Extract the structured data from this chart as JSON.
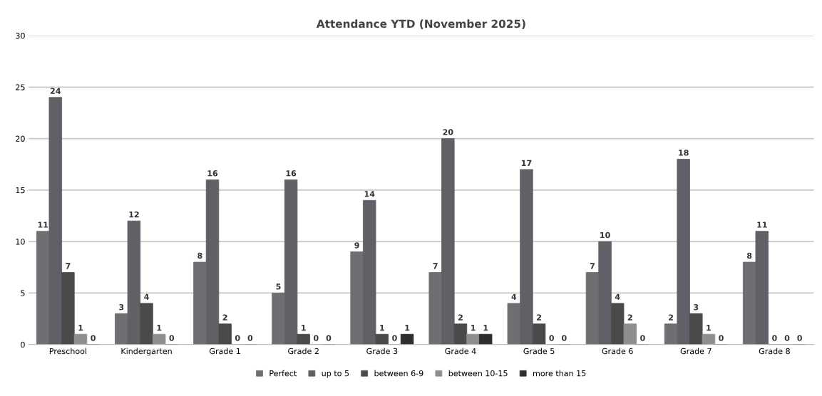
{
  "chart_data": {
    "type": "bar",
    "title": "Attendance YTD (November 2025)",
    "categories": [
      "Preschool",
      "Kindergarten",
      "Grade 1",
      "Grade 2",
      "Grade 3",
      "Grade 4",
      "Grade 5",
      "Grade 6",
      "Grade 7",
      "Grade 8"
    ],
    "series": [
      {
        "name": "Perfect",
        "color": "#6f6f73",
        "values": [
          11,
          3,
          8,
          5,
          9,
          7,
          4,
          7,
          2,
          8
        ]
      },
      {
        "name": "up to 5",
        "color": "#606066",
        "values": [
          24,
          12,
          16,
          16,
          14,
          20,
          17,
          10,
          18,
          11
        ]
      },
      {
        "name": "between 6-9",
        "color": "#4a4a4a",
        "values": [
          7,
          4,
          2,
          1,
          1,
          2,
          2,
          4,
          3,
          0
        ]
      },
      {
        "name": "between 10-15",
        "color": "#8e8e8e",
        "values": [
          1,
          1,
          0,
          0,
          0,
          1,
          0,
          2,
          1,
          0
        ]
      },
      {
        "name": "more than 15",
        "color": "#2e2e30",
        "values": [
          0,
          0,
          0,
          0,
          1,
          1,
          0,
          0,
          0,
          0
        ]
      }
    ],
    "ylim": [
      0,
      30
    ],
    "yticks": [
      0,
      5,
      10,
      15,
      20,
      25,
      30
    ],
    "grid": "y",
    "legend": "bottom",
    "data_labels": true
  }
}
